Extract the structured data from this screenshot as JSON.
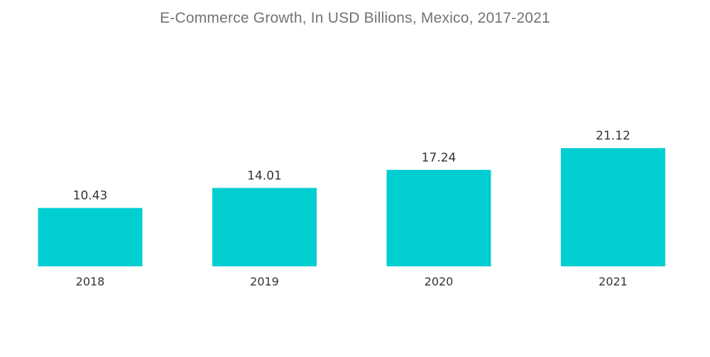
{
  "chart_data": {
    "type": "bar",
    "title": "E-Commerce Growth, In USD Billions, Mexico, 2017-2021",
    "categories": [
      "2018",
      "2019",
      "2020",
      "2021"
    ],
    "values": [
      10.43,
      14.01,
      17.24,
      21.12
    ],
    "value_labels": [
      "10.43",
      "14.01",
      "17.24",
      "21.12"
    ],
    "xlabel": "",
    "ylabel": "",
    "ylim": [
      0,
      25
    ],
    "grid": false,
    "legend": "none",
    "bar_color": "#00CED1"
  }
}
